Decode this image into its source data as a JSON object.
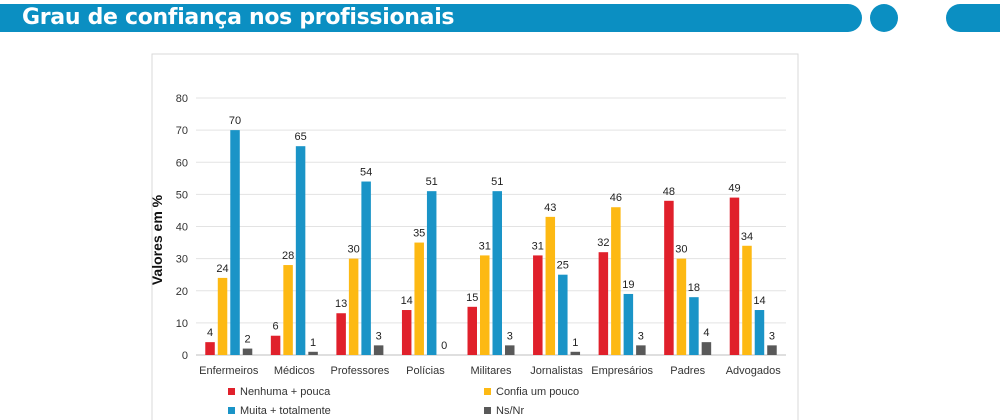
{
  "header": {
    "title": "Grau de confiança nos profissionais",
    "accent": "#0b8fc2"
  },
  "chart_data": {
    "type": "bar",
    "categories": [
      "Enfermeiros",
      "Médicos",
      "Professores",
      "Polícias",
      "Militares",
      "Jornalistas",
      "Empresários",
      "Padres",
      "Advogados"
    ],
    "series": [
      {
        "name": "Nenhuma + pouca",
        "color": "#e0202b",
        "values": [
          4,
          6,
          13,
          14,
          15,
          31,
          32,
          48,
          49
        ]
      },
      {
        "name": "Confia um pouco",
        "color": "#fdb913",
        "values": [
          24,
          28,
          30,
          35,
          31,
          43,
          46,
          30,
          34
        ]
      },
      {
        "name": "Muita + totalmente",
        "color": "#1a94c7",
        "values": [
          70,
          65,
          54,
          51,
          51,
          25,
          19,
          18,
          14
        ]
      },
      {
        "name": "Ns/Nr",
        "color": "#595959",
        "values": [
          2,
          1,
          3,
          0,
          3,
          1,
          3,
          4,
          3
        ]
      }
    ],
    "ylabel": "Valores em %",
    "ylim": [
      0,
      80
    ],
    "yticks": [
      0,
      10,
      20,
      30,
      40,
      50,
      60,
      70,
      80
    ],
    "grid": true,
    "legend": "bottom"
  }
}
